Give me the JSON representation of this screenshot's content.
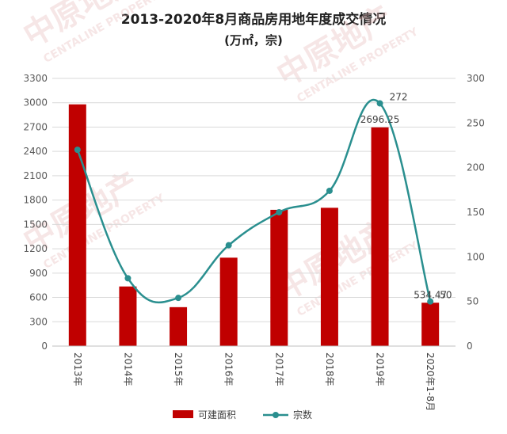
{
  "title_line1": "2013-2020年8月商品房用地年度成交情况",
  "title_line2": "(万㎡，宗)",
  "watermark": {
    "brand_cn": "中原地产",
    "brand_en": "CENTALINE PROPERTY"
  },
  "chart_data": {
    "type": "bar",
    "categories": [
      "2013年",
      "2014年",
      "2015年",
      "2016年",
      "2017年",
      "2018年",
      "2019年",
      "2020年1-8月"
    ],
    "series": [
      {
        "name": "可建面积",
        "type": "bar",
        "axis": "left",
        "color": "#c00000",
        "values": [
          2980,
          735,
          480,
          1090,
          1680,
          1705,
          2696.25,
          534.47
        ],
        "data_labels": [
          "",
          "",
          "",
          "",
          "",
          "",
          "2696.25",
          "534.47"
        ]
      },
      {
        "name": "宗数",
        "type": "line",
        "axis": "right",
        "color": "#2a8f8f",
        "values": [
          220,
          76,
          54,
          113,
          150,
          174,
          272,
          50
        ],
        "data_labels": [
          "",
          "",
          "",
          "",
          "",
          "",
          "272",
          "50"
        ]
      }
    ],
    "y_left": {
      "min": 0,
      "max": 3300,
      "step": 300,
      "ticks": [
        "0",
        "300",
        "600",
        "900",
        "1200",
        "1500",
        "1800",
        "2100",
        "2400",
        "2700",
        "3000",
        "3300"
      ]
    },
    "y_right": {
      "min": 0,
      "max": 300,
      "step": 50,
      "ticks": [
        "0",
        "50",
        "100",
        "150",
        "200",
        "250",
        "300"
      ]
    },
    "legend_position": "bottom",
    "grid": true
  }
}
